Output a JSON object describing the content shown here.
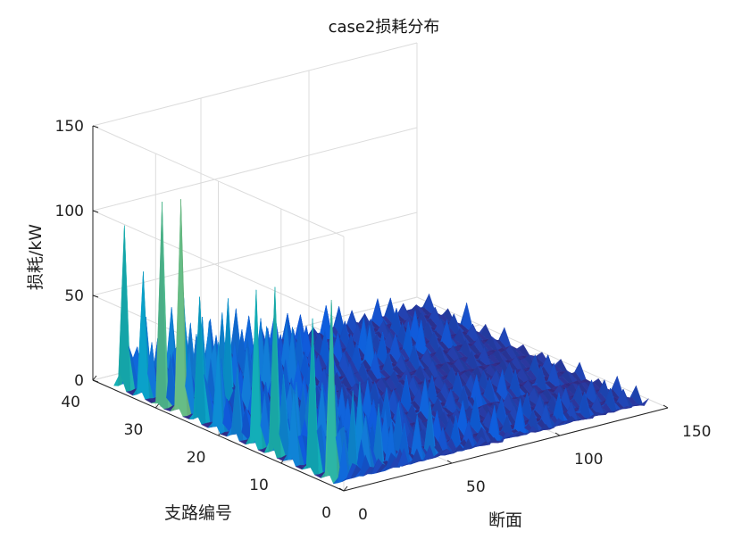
{
  "chart_data": {
    "type": "surface",
    "title": "case2损耗分布",
    "zlabel": "损耗/kW",
    "xlabel": "断面",
    "ylabel": "支路编号",
    "x_range": [
      0,
      150
    ],
    "y_range": [
      0,
      40
    ],
    "z_range": [
      0,
      150
    ],
    "x_ticks": [
      "0",
      "50",
      "100",
      "150"
    ],
    "y_ticks": [
      "0",
      "10",
      "20",
      "30",
      "40"
    ],
    "z_ticks": [
      "0",
      "50",
      "100",
      "150"
    ],
    "x_data_extent": [
      1,
      144
    ],
    "y_data_extent": [
      1,
      37
    ],
    "grid": true,
    "colormap": "parula",
    "peaks": [
      {
        "branch": 36,
        "max_loss": 94
      },
      {
        "branch": 33,
        "max_loss": 72
      },
      {
        "branch": 30,
        "max_loss": 117
      },
      {
        "branch": 27,
        "max_loss": 117
      },
      {
        "branch": 24,
        "max_loss": 68
      },
      {
        "branch": 21,
        "max_loss": 46
      },
      {
        "branch": 18,
        "max_loss": 38
      },
      {
        "branch": 15,
        "max_loss": 88
      },
      {
        "branch": 12,
        "max_loss": 88
      },
      {
        "branch": 9,
        "max_loss": 35
      },
      {
        "branch": 6,
        "max_loss": 80
      },
      {
        "branch": 3,
        "max_loss": 95
      },
      {
        "branch": 1,
        "max_loss": 20
      }
    ]
  }
}
